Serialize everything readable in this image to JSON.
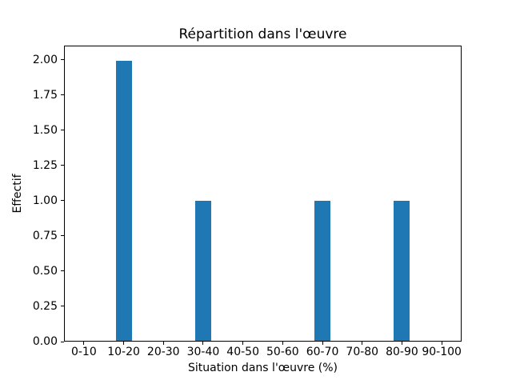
{
  "chart_data": {
    "type": "bar",
    "title": "Répartition dans l'œuvre",
    "xlabel": "Situation dans l'œuvre (%)",
    "ylabel": "Effectif",
    "categories": [
      "0-10",
      "10-20",
      "20-30",
      "30-40",
      "40-50",
      "50-60",
      "60-70",
      "70-80",
      "80-90",
      "90-100"
    ],
    "values": [
      0,
      2,
      0,
      1,
      0,
      0,
      1,
      0,
      1,
      0
    ],
    "y_tick_labels": [
      "0.00",
      "0.25",
      "0.50",
      "0.75",
      "1.00",
      "1.25",
      "1.50",
      "1.75",
      "2.00"
    ],
    "y_tick_values": [
      0,
      0.25,
      0.5,
      0.75,
      1,
      1.25,
      1.5,
      1.75,
      2
    ],
    "ylim": [
      0,
      2.1
    ],
    "bar_color": "#1f77b4",
    "axis_color": "#000000",
    "grid": false,
    "legend_position": "none"
  }
}
